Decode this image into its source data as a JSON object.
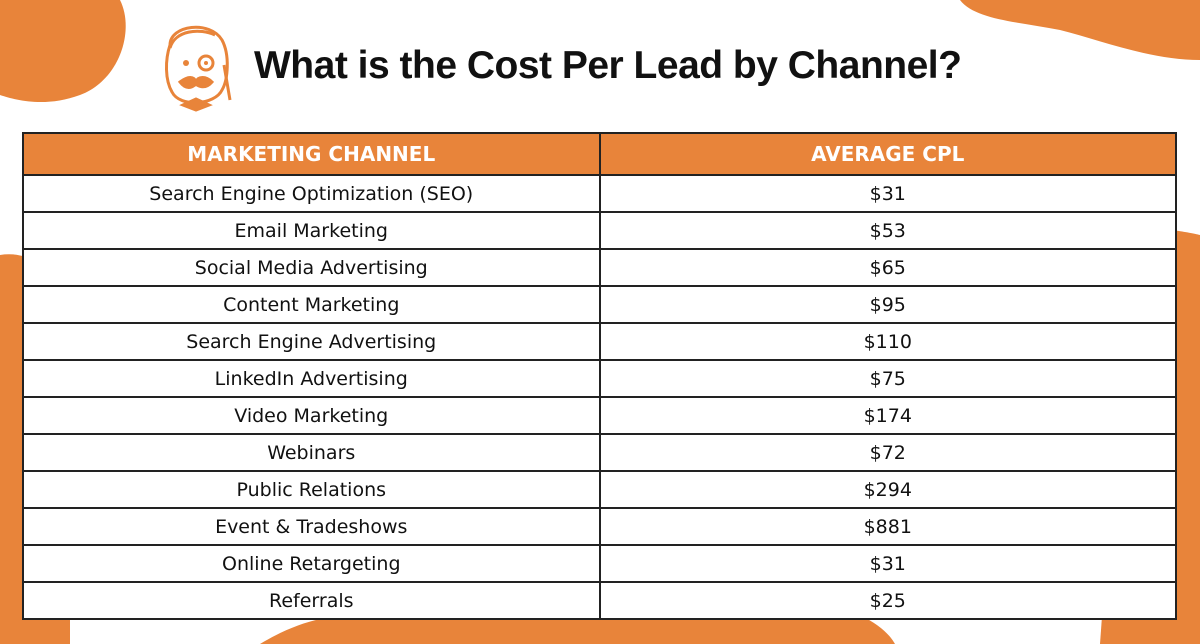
{
  "header": {
    "title": "What is the Cost Per Lead by Channel?"
  },
  "table": {
    "columns": [
      "MARKETING CHANNEL",
      "AVERAGE CPL"
    ],
    "rows": [
      [
        "Search Engine Optimization (SEO)",
        "$31"
      ],
      [
        "Email Marketing",
        "$53"
      ],
      [
        "Social Media Advertising",
        "$65"
      ],
      [
        "Content Marketing",
        "$95"
      ],
      [
        "Search Engine Advertising",
        "$110"
      ],
      [
        "LinkedIn Advertising",
        "$75"
      ],
      [
        "Video Marketing",
        "$174"
      ],
      [
        "Webinars",
        "$72"
      ],
      [
        "Public Relations",
        "$294"
      ],
      [
        "Event & Tradeshows",
        "$881"
      ],
      [
        "Online Retargeting",
        "$31"
      ],
      [
        "Referrals",
        "$25"
      ]
    ]
  }
}
